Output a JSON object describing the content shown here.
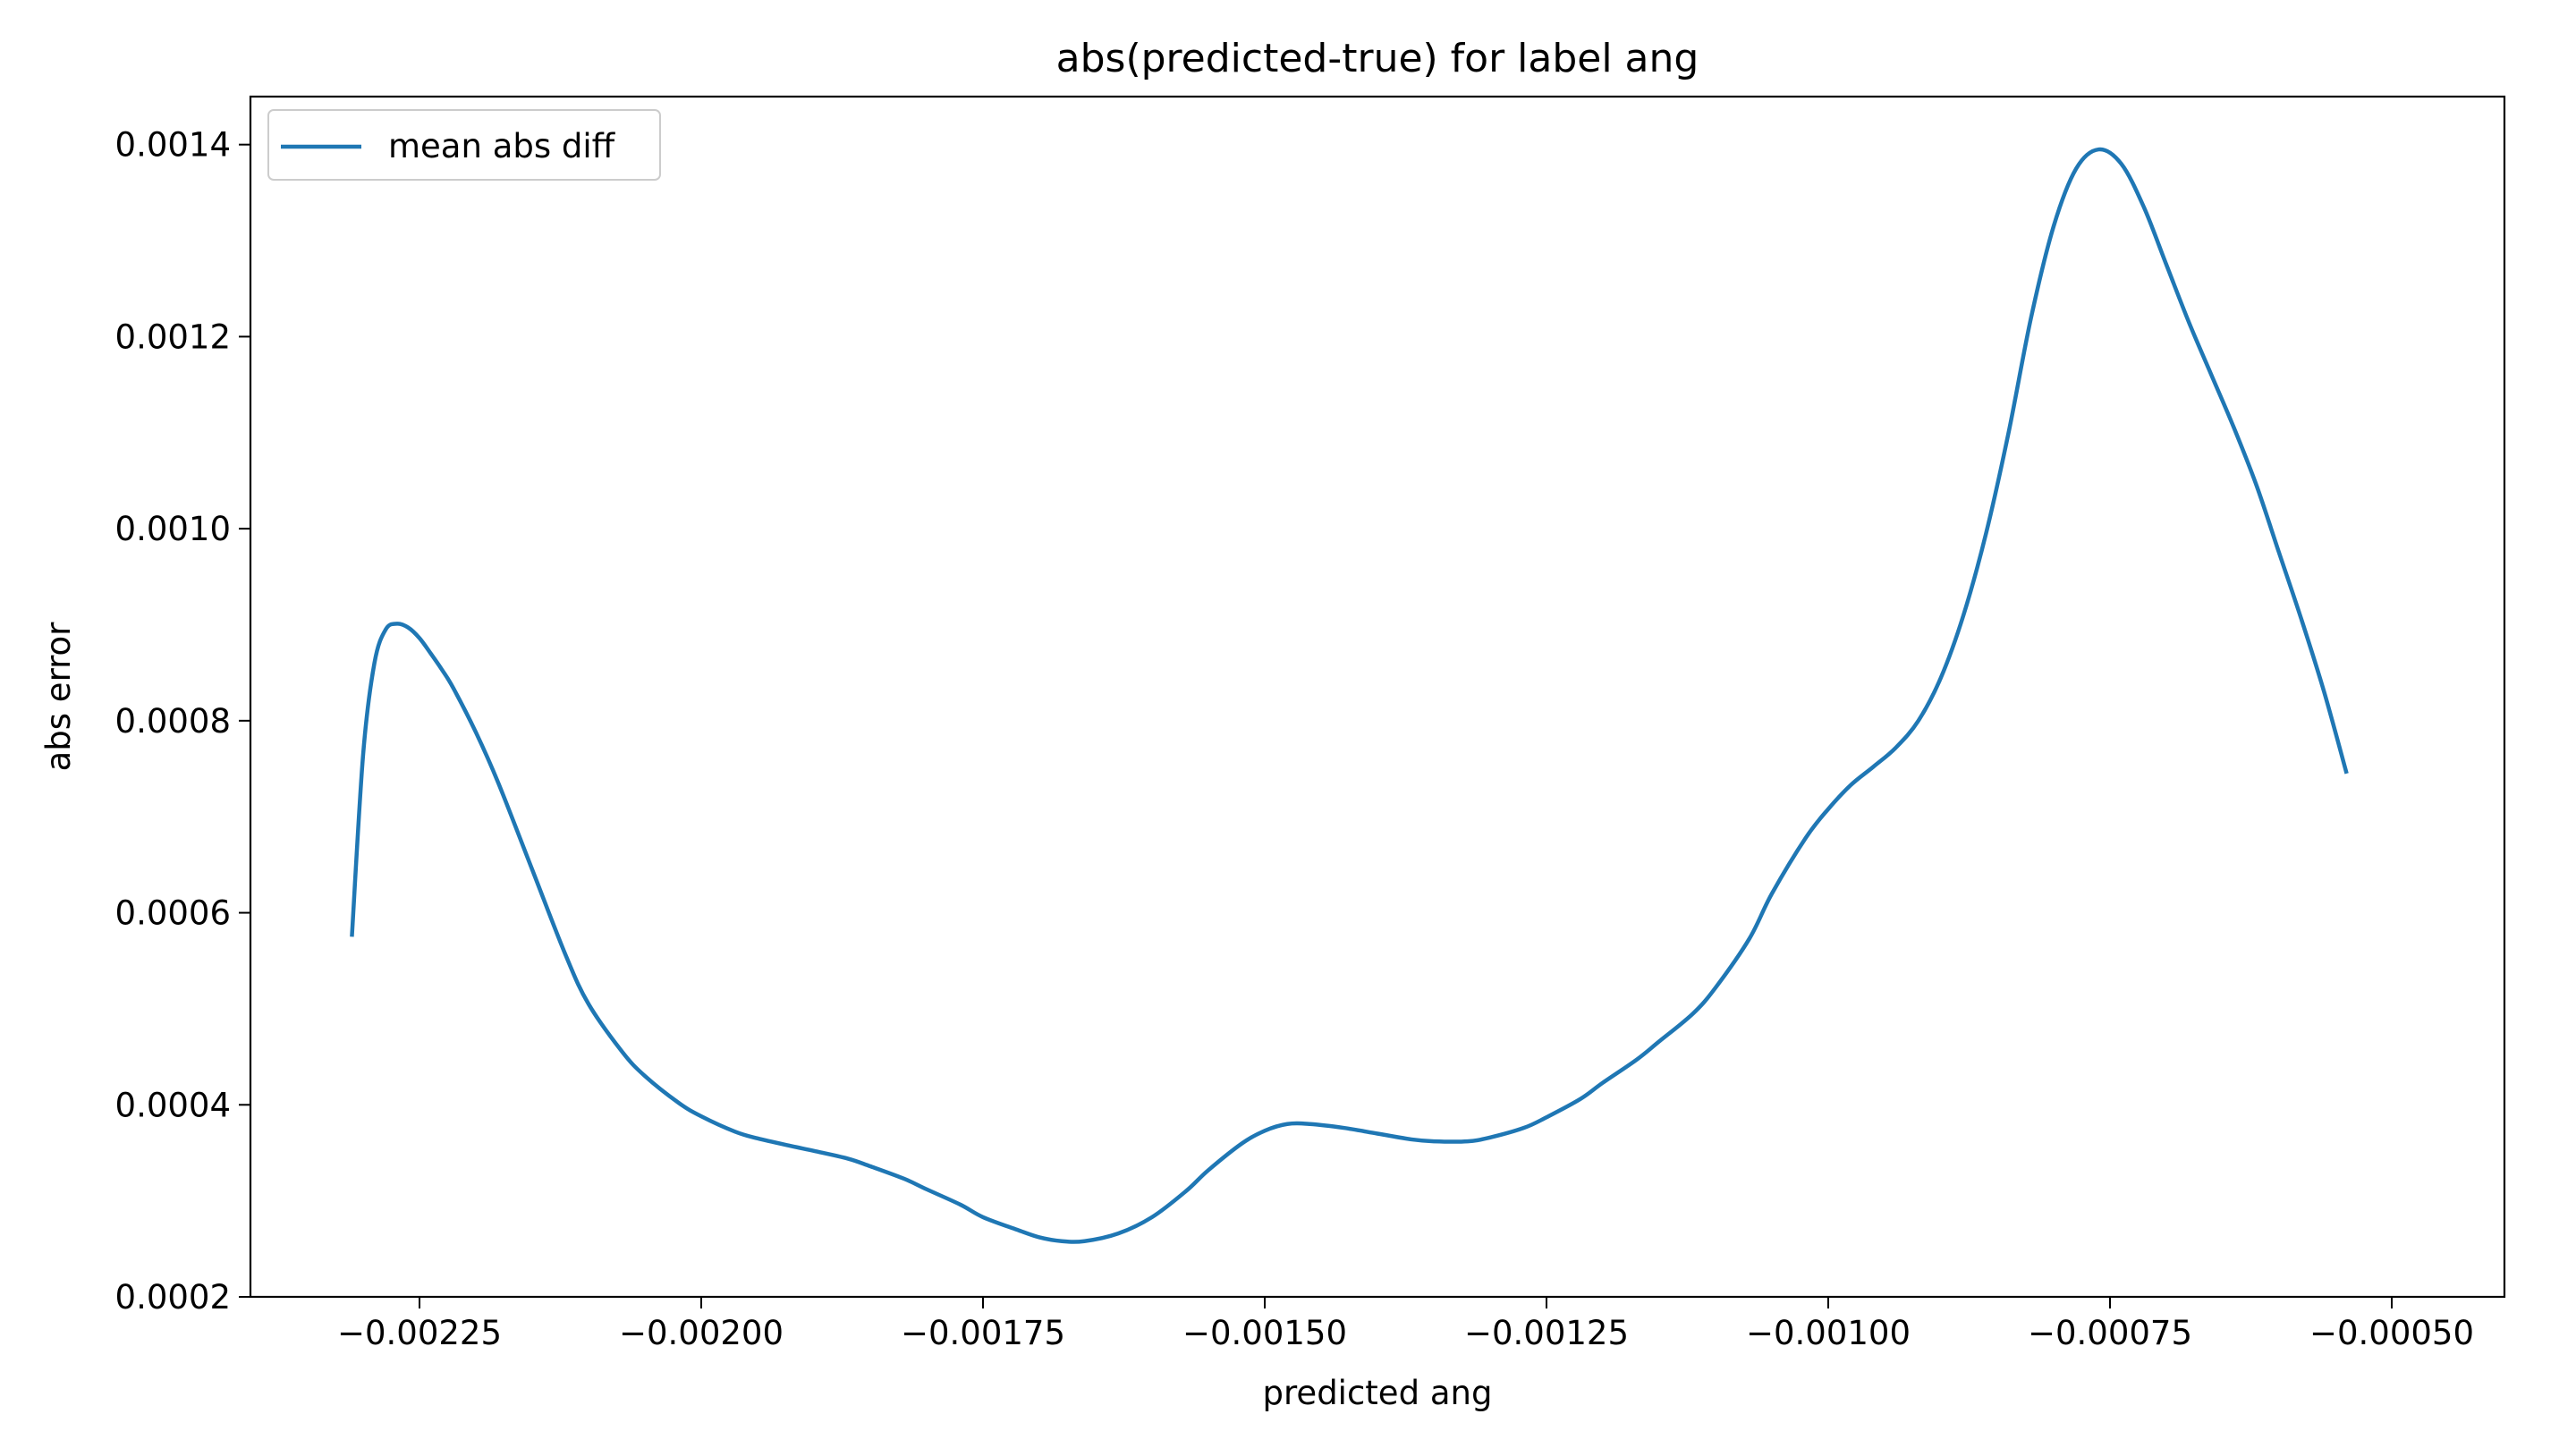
{
  "chart_data": {
    "type": "line",
    "title": "abs(predicted-true) for label ang",
    "xlabel": "predicted ang",
    "ylabel": "abs error",
    "xlim": [
      -0.0024,
      -0.0004
    ],
    "ylim": [
      0.0002,
      0.00145
    ],
    "xticks": [
      -0.00225,
      -0.002,
      -0.00175,
      -0.0015,
      -0.00125,
      -0.001,
      -0.00075,
      -0.0005
    ],
    "xtick_labels": [
      "−0.00225",
      "−0.00200",
      "−0.00175",
      "−0.00150",
      "−0.00125",
      "−0.00100",
      "−0.00075",
      "−0.00050"
    ],
    "yticks": [
      0.0002,
      0.0004,
      0.0006,
      0.0008,
      0.001,
      0.0012,
      0.0014
    ],
    "ytick_labels": [
      "0.0002",
      "0.0004",
      "0.0006",
      "0.0008",
      "0.0010",
      "0.0012",
      "0.0014"
    ],
    "grid": false,
    "legend_position": "upper left",
    "series": [
      {
        "name": "mean abs diff",
        "color": "#1f77b4",
        "x": [
          -0.00231,
          -0.0023,
          -0.00229,
          -0.00228,
          -0.00227,
          -0.00226,
          -0.00225,
          -0.00224,
          -0.00223,
          -0.00222,
          -0.0022,
          -0.00218,
          -0.00215,
          -0.00212,
          -0.0021,
          -0.00207,
          -0.00205,
          -0.00202,
          -0.002,
          -0.00197,
          -0.00195,
          -0.00192,
          -0.0019,
          -0.00187,
          -0.00185,
          -0.00182,
          -0.0018,
          -0.00177,
          -0.00175,
          -0.00172,
          -0.0017,
          -0.00168,
          -0.00166,
          -0.00163,
          -0.0016,
          -0.00157,
          -0.00155,
          -0.00152,
          -0.0015,
          -0.00148,
          -0.00146,
          -0.00143,
          -0.0014,
          -0.00137,
          -0.00135,
          -0.00132,
          -0.0013,
          -0.00127,
          -0.00125,
          -0.00122,
          -0.0012,
          -0.00117,
          -0.00115,
          -0.00112,
          -0.0011,
          -0.00107,
          -0.00105,
          -0.00102,
          -0.001,
          -0.00098,
          -0.00096,
          -0.00094,
          -0.00092,
          -0.0009,
          -0.00088,
          -0.00086,
          -0.00084,
          -0.00082,
          -0.0008,
          -0.00078,
          -0.00076,
          -0.00074,
          -0.00072,
          -0.0007,
          -0.00068,
          -0.00066,
          -0.00064,
          -0.00062,
          -0.0006,
          -0.00058,
          -0.00056,
          -0.00054
        ],
        "y": [
          0.000575,
          0.000765,
          0.00086,
          0.000895,
          0.000901,
          0.000897,
          0.000886,
          0.00087,
          0.000853,
          0.000834,
          0.000788,
          0.000735,
          0.000645,
          0.000555,
          0.000505,
          0.000455,
          0.00043,
          0.000402,
          0.000388,
          0.000372,
          0.000365,
          0.000357,
          0.000352,
          0.000344,
          0.000336,
          0.000323,
          0.000312,
          0.000296,
          0.000283,
          0.00027,
          0.000262,
          0.000258,
          0.000258,
          0.000266,
          0.000283,
          0.00031,
          0.000332,
          0.00036,
          0.000373,
          0.00038,
          0.00038,
          0.000376,
          0.00037,
          0.000364,
          0.000362,
          0.000362,
          0.000366,
          0.000376,
          0.000387,
          0.000406,
          0.000423,
          0.000447,
          0.000466,
          0.000495,
          0.000522,
          0.000573,
          0.00062,
          0.000678,
          0.000708,
          0.000733,
          0.000752,
          0.000772,
          0.0008,
          0.000845,
          0.00091,
          0.000995,
          0.0011,
          0.00122,
          0.001315,
          0.001375,
          0.001395,
          0.00138,
          0.001335,
          0.001275,
          0.001215,
          0.00116,
          0.001105,
          0.001045,
          0.000975,
          0.000905,
          0.00083,
          0.000745
        ]
      }
    ]
  }
}
